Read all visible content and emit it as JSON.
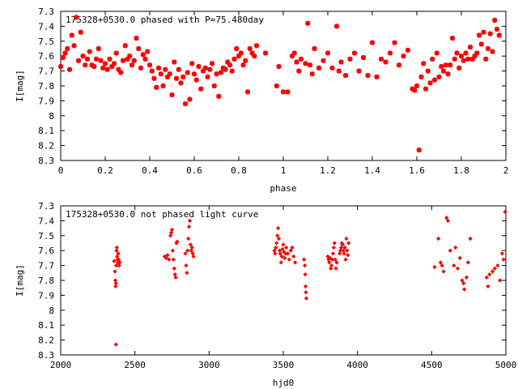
{
  "colors": {
    "points": "#ff0000",
    "axes": "#000000",
    "background": "#ffffff"
  },
  "chart_data": [
    {
      "type": "scatter",
      "title": "175328+0530.0 phased with P=75.480day",
      "xlabel": "phase",
      "ylabel": "I[mag]",
      "xlim": [
        0,
        2
      ],
      "ylim": [
        8.3,
        7.3
      ],
      "y_inverted": true,
      "grid": false,
      "x_ticks": [
        0,
        0.2,
        0.4,
        0.6,
        0.8,
        1,
        1.2,
        1.4,
        1.6,
        1.8,
        2
      ],
      "x_tick_labels": [
        "0",
        "0.2",
        "0.4",
        "0.6",
        "0.8",
        "1",
        "1.2",
        "1.4",
        "1.6",
        "1.8",
        "2"
      ],
      "y_ticks": [
        7.3,
        7.4,
        7.5,
        7.6,
        7.7,
        7.8,
        7.9,
        8.0,
        8.1,
        8.2,
        8.3
      ],
      "y_tick_labels": [
        "7.3",
        "7.4",
        "7.5",
        "7.6",
        "7.7",
        "7.8",
        "7.9",
        "8",
        "8.1",
        "8.2",
        "8.3"
      ],
      "marker": "star",
      "points": [
        [
          0.0,
          7.67
        ],
        [
          0.01,
          7.61
        ],
        [
          0.02,
          7.58
        ],
        [
          0.03,
          7.55
        ],
        [
          0.04,
          7.69
        ],
        [
          0.05,
          7.46
        ],
        [
          0.06,
          7.53
        ],
        [
          0.07,
          7.34
        ],
        [
          0.08,
          7.63
        ],
        [
          0.09,
          7.44
        ],
        [
          0.1,
          7.6
        ],
        [
          0.11,
          7.66
        ],
        [
          0.12,
          7.62
        ],
        [
          0.13,
          7.57
        ],
        [
          0.14,
          7.66
        ],
        [
          0.15,
          7.67
        ],
        [
          0.16,
          7.62
        ],
        [
          0.17,
          7.55
        ],
        [
          0.18,
          7.63
        ],
        [
          0.19,
          7.68
        ],
        [
          0.2,
          7.65
        ],
        [
          0.21,
          7.69
        ],
        [
          0.22,
          7.62
        ],
        [
          0.23,
          7.67
        ],
        [
          0.24,
          7.65
        ],
        [
          0.25,
          7.58
        ],
        [
          0.26,
          7.69
        ],
        [
          0.27,
          7.71
        ],
        [
          0.28,
          7.63
        ],
        [
          0.29,
          7.53
        ],
        [
          0.3,
          7.62
        ],
        [
          0.31,
          7.6
        ],
        [
          0.32,
          7.66
        ],
        [
          0.33,
          7.63
        ],
        [
          0.34,
          7.48
        ],
        [
          0.35,
          7.55
        ],
        [
          0.36,
          7.68
        ],
        [
          0.37,
          7.59
        ],
        [
          0.38,
          7.62
        ],
        [
          0.39,
          7.57
        ],
        [
          0.4,
          7.66
        ],
        [
          0.41,
          7.7
        ],
        [
          0.42,
          7.75
        ],
        [
          0.43,
          7.81
        ],
        [
          0.44,
          7.68
        ],
        [
          0.45,
          7.72
        ],
        [
          0.46,
          7.8
        ],
        [
          0.47,
          7.69
        ],
        [
          0.48,
          7.74
        ],
        [
          0.49,
          7.72
        ],
        [
          0.5,
          7.86
        ],
        [
          0.51,
          7.64
        ],
        [
          0.52,
          7.75
        ],
        [
          0.53,
          7.69
        ],
        [
          0.54,
          7.78
        ],
        [
          0.55,
          7.74
        ],
        [
          0.56,
          7.92
        ],
        [
          0.57,
          7.71
        ],
        [
          0.58,
          7.89
        ],
        [
          0.59,
          7.65
        ],
        [
          0.6,
          7.72
        ],
        [
          0.61,
          7.76
        ],
        [
          0.62,
          7.67
        ],
        [
          0.63,
          7.82
        ],
        [
          0.64,
          7.7
        ],
        [
          0.65,
          7.68
        ],
        [
          0.66,
          7.74
        ],
        [
          0.67,
          7.69
        ],
        [
          0.68,
          7.65
        ],
        [
          0.69,
          7.8
        ],
        [
          0.7,
          7.72
        ],
        [
          0.71,
          7.87
        ],
        [
          0.72,
          7.71
        ],
        [
          0.73,
          7.68
        ],
        [
          0.74,
          7.69
        ],
        [
          0.75,
          7.64
        ],
        [
          0.76,
          7.66
        ],
        [
          0.77,
          7.7
        ],
        [
          0.78,
          7.62
        ],
        [
          0.79,
          7.55
        ],
        [
          0.8,
          7.6
        ],
        [
          0.81,
          7.58
        ],
        [
          0.82,
          7.66
        ],
        [
          0.83,
          7.63
        ],
        [
          0.84,
          7.84
        ],
        [
          0.85,
          7.55
        ],
        [
          0.86,
          7.58
        ],
        [
          0.87,
          7.6
        ],
        [
          0.88,
          7.53
        ],
        [
          0.92,
          7.58
        ],
        [
          0.97,
          7.8
        ],
        [
          0.98,
          7.67
        ],
        [
          1.0,
          7.84
        ],
        [
          1.02,
          7.84
        ],
        [
          1.04,
          7.6
        ],
        [
          1.05,
          7.58
        ],
        [
          1.06,
          7.64
        ],
        [
          1.07,
          7.7
        ],
        [
          1.08,
          7.62
        ],
        [
          1.1,
          7.65
        ],
        [
          1.11,
          7.38
        ],
        [
          1.12,
          7.66
        ],
        [
          1.13,
          7.72
        ],
        [
          1.14,
          7.55
        ],
        [
          1.16,
          7.68
        ],
        [
          1.18,
          7.63
        ],
        [
          1.2,
          7.58
        ],
        [
          1.22,
          7.68
        ],
        [
          1.24,
          7.4
        ],
        [
          1.25,
          7.7
        ],
        [
          1.26,
          7.64
        ],
        [
          1.28,
          7.73
        ],
        [
          1.3,
          7.62
        ],
        [
          1.32,
          7.58
        ],
        [
          1.34,
          7.7
        ],
        [
          1.36,
          7.61
        ],
        [
          1.38,
          7.73
        ],
        [
          1.4,
          7.51
        ],
        [
          1.42,
          7.74
        ],
        [
          1.44,
          7.62
        ],
        [
          1.46,
          7.64
        ],
        [
          1.48,
          7.58
        ],
        [
          1.5,
          7.51
        ],
        [
          1.52,
          7.66
        ],
        [
          1.54,
          7.6
        ],
        [
          1.56,
          7.56
        ],
        [
          1.58,
          7.82
        ],
        [
          1.59,
          7.83
        ],
        [
          1.6,
          7.8
        ],
        [
          1.61,
          8.23
        ],
        [
          1.62,
          7.74
        ],
        [
          1.63,
          7.65
        ],
        [
          1.64,
          7.82
        ],
        [
          1.65,
          7.7
        ],
        [
          1.66,
          7.78
        ],
        [
          1.67,
          7.62
        ],
        [
          1.68,
          7.76
        ],
        [
          1.69,
          7.58
        ],
        [
          1.7,
          7.74
        ],
        [
          1.71,
          7.67
        ],
        [
          1.72,
          7.7
        ],
        [
          1.73,
          7.66
        ],
        [
          1.74,
          7.72
        ],
        [
          1.75,
          7.66
        ],
        [
          1.76,
          7.48
        ],
        [
          1.77,
          7.62
        ],
        [
          1.78,
          7.58
        ],
        [
          1.79,
          7.68
        ],
        [
          1.8,
          7.6
        ],
        [
          1.81,
          7.63
        ],
        [
          1.82,
          7.58
        ],
        [
          1.83,
          7.62
        ],
        [
          1.84,
          7.54
        ],
        [
          1.85,
          7.62
        ],
        [
          1.86,
          7.6
        ],
        [
          1.87,
          7.58
        ],
        [
          1.88,
          7.46
        ],
        [
          1.89,
          7.52
        ],
        [
          1.9,
          7.44
        ],
        [
          1.91,
          7.62
        ],
        [
          1.92,
          7.55
        ],
        [
          1.93,
          7.45
        ],
        [
          1.94,
          7.57
        ],
        [
          1.95,
          7.36
        ],
        [
          1.96,
          7.42
        ],
        [
          1.97,
          7.46
        ]
      ]
    },
    {
      "type": "scatter",
      "title": "175328+0530.0 not phased light curve",
      "xlabel": "hjd0",
      "ylabel": "I[mag]",
      "xlim": [
        2000,
        5000
      ],
      "ylim": [
        8.3,
        7.3
      ],
      "y_inverted": true,
      "grid": false,
      "x_ticks": [
        2000,
        2500,
        3000,
        3500,
        4000,
        4500,
        5000
      ],
      "x_tick_labels": [
        "2000",
        "2500",
        "3000",
        "3500",
        "4000",
        "4500",
        "5000"
      ],
      "y_ticks": [
        7.3,
        7.4,
        7.5,
        7.6,
        7.7,
        7.8,
        7.9,
        8.0,
        8.1,
        8.2,
        8.3
      ],
      "y_tick_labels": [
        "7.3",
        "7.4",
        "7.5",
        "7.6",
        "7.7",
        "7.8",
        "7.9",
        "8",
        "8.1",
        "8.2",
        "8.3"
      ],
      "marker": "diamond",
      "points": [
        [
          2360,
          7.67
        ],
        [
          2365,
          7.74
        ],
        [
          2368,
          7.8
        ],
        [
          2370,
          7.84
        ],
        [
          2372,
          7.82
        ],
        [
          2374,
          7.7
        ],
        [
          2376,
          7.6
        ],
        [
          2378,
          7.58
        ],
        [
          2380,
          7.64
        ],
        [
          2382,
          7.66
        ],
        [
          2385,
          7.68
        ],
        [
          2388,
          7.62
        ],
        [
          2390,
          7.66
        ],
        [
          2394,
          7.7
        ],
        [
          2398,
          7.68
        ],
        [
          2372,
          8.23
        ],
        [
          2700,
          7.64
        ],
        [
          2710,
          7.65
        ],
        [
          2720,
          7.63
        ],
        [
          2730,
          7.66
        ],
        [
          2740,
          7.5
        ],
        [
          2745,
          7.48
        ],
        [
          2750,
          7.46
        ],
        [
          2755,
          7.6
        ],
        [
          2760,
          7.66
        ],
        [
          2765,
          7.72
        ],
        [
          2770,
          7.76
        ],
        [
          2775,
          7.78
        ],
        [
          2780,
          7.55
        ],
        [
          2785,
          7.54
        ],
        [
          2840,
          7.62
        ],
        [
          2845,
          7.7
        ],
        [
          2850,
          7.75
        ],
        [
          2855,
          7.6
        ],
        [
          2860,
          7.52
        ],
        [
          2865,
          7.44
        ],
        [
          2870,
          7.4
        ],
        [
          2875,
          7.56
        ],
        [
          2880,
          7.6
        ],
        [
          2885,
          7.58
        ],
        [
          2890,
          7.62
        ],
        [
          2895,
          7.64
        ],
        [
          3440,
          7.6
        ],
        [
          3445,
          7.62
        ],
        [
          3450,
          7.58
        ],
        [
          3455,
          7.55
        ],
        [
          3460,
          7.5
        ],
        [
          3465,
          7.45
        ],
        [
          3470,
          7.52
        ],
        [
          3475,
          7.6
        ],
        [
          3480,
          7.62
        ],
        [
          3485,
          7.68
        ],
        [
          3490,
          7.64
        ],
        [
          3495,
          7.59
        ],
        [
          3500,
          7.56
        ],
        [
          3505,
          7.61
        ],
        [
          3510,
          7.65
        ],
        [
          3515,
          7.62
        ],
        [
          3520,
          7.58
        ],
        [
          3530,
          7.62
        ],
        [
          3540,
          7.66
        ],
        [
          3550,
          7.6
        ],
        [
          3560,
          7.58
        ],
        [
          3570,
          7.64
        ],
        [
          3580,
          7.68
        ],
        [
          3640,
          7.66
        ],
        [
          3645,
          7.7
        ],
        [
          3648,
          7.76
        ],
        [
          3650,
          7.84
        ],
        [
          3652,
          7.88
        ],
        [
          3655,
          7.92
        ],
        [
          3800,
          7.64
        ],
        [
          3805,
          7.66
        ],
        [
          3810,
          7.68
        ],
        [
          3815,
          7.65
        ],
        [
          3820,
          7.72
        ],
        [
          3825,
          7.7
        ],
        [
          3830,
          7.66
        ],
        [
          3835,
          7.62
        ],
        [
          3840,
          7.58
        ],
        [
          3845,
          7.55
        ],
        [
          3850,
          7.66
        ],
        [
          3855,
          7.72
        ],
        [
          3860,
          7.68
        ],
        [
          3880,
          7.62
        ],
        [
          3885,
          7.6
        ],
        [
          3890,
          7.58
        ],
        [
          3895,
          7.55
        ],
        [
          3900,
          7.56
        ],
        [
          3905,
          7.6
        ],
        [
          3910,
          7.62
        ],
        [
          3915,
          7.58
        ],
        [
          3920,
          7.66
        ],
        [
          3925,
          7.52
        ],
        [
          3930,
          7.6
        ],
        [
          3935,
          7.63
        ],
        [
          3940,
          7.55
        ],
        [
          4520,
          7.71
        ],
        [
          4545,
          7.52
        ],
        [
          4560,
          7.68
        ],
        [
          4570,
          7.7
        ],
        [
          4580,
          7.74
        ],
        [
          4600,
          7.38
        ],
        [
          4610,
          7.4
        ],
        [
          4625,
          7.6
        ],
        [
          4650,
          7.7
        ],
        [
          4660,
          7.58
        ],
        [
          4675,
          7.72
        ],
        [
          4690,
          7.65
        ],
        [
          4705,
          7.8
        ],
        [
          4715,
          7.82
        ],
        [
          4720,
          7.86
        ],
        [
          4735,
          7.78
        ],
        [
          4745,
          7.68
        ],
        [
          4760,
          7.52
        ],
        [
          4870,
          7.78
        ],
        [
          4880,
          7.84
        ],
        [
          4890,
          7.76
        ],
        [
          4910,
          7.74
        ],
        [
          4925,
          7.72
        ],
        [
          4945,
          7.7
        ],
        [
          4960,
          7.8
        ],
        [
          4975,
          7.62
        ],
        [
          4985,
          7.66
        ],
        [
          4995,
          7.34
        ]
      ]
    }
  ]
}
